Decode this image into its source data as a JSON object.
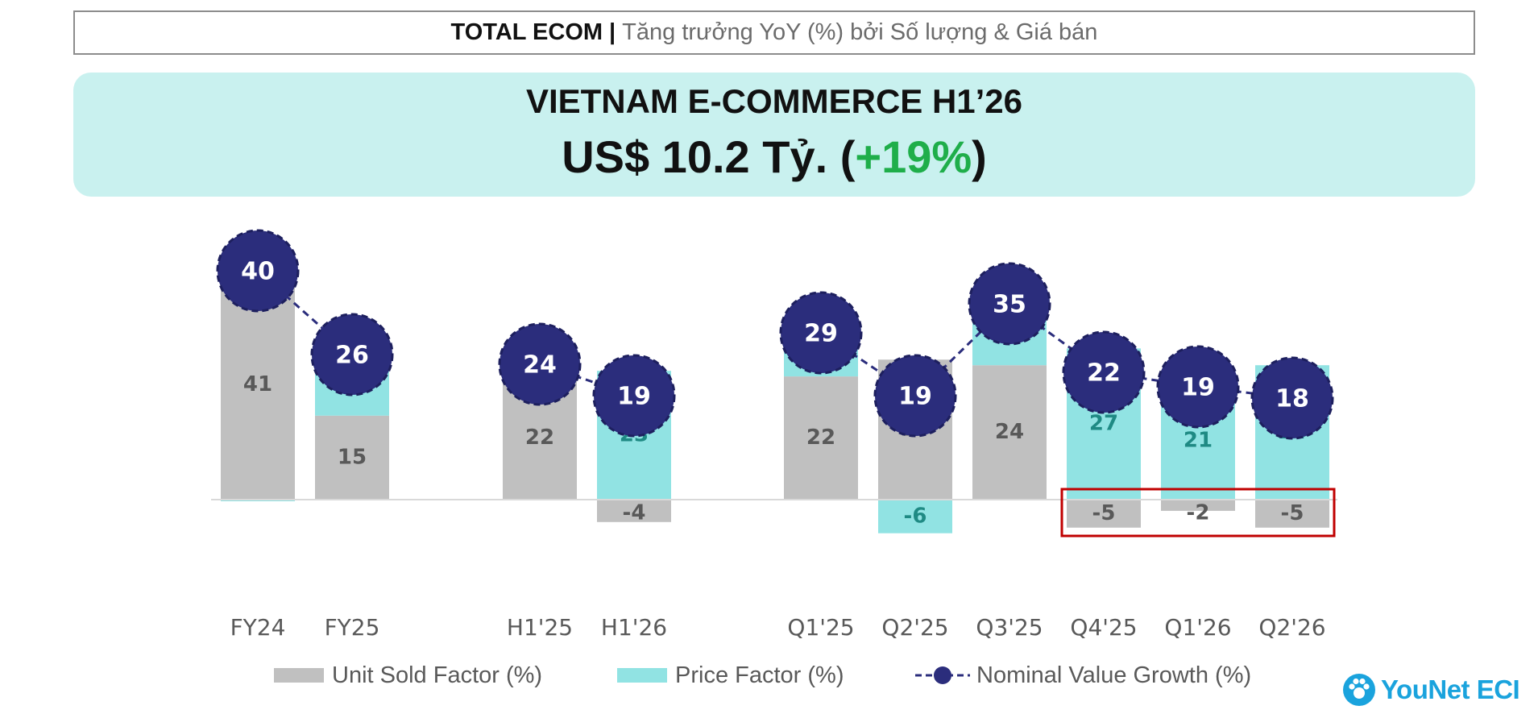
{
  "header": {
    "bold": "TOTAL ECOM",
    "separator": "|",
    "rest": "Tăng trưởng YoY (%) bởi Số lượng & Giá bán"
  },
  "headline": {
    "line1": "VIETNAM E-COMMERCE H1’26",
    "line2_prefix": "US$ 10.2 Tỷ. (",
    "line2_growth": "+19%",
    "line2_suffix": ")"
  },
  "colors": {
    "unit": "#c0c0c0",
    "price": "#91e3e3",
    "circle": "#2b2d7c",
    "price_label": "#1f8a84",
    "unit_label": "#595959",
    "highlight": "#c00000",
    "growth": "#1fae4a"
  },
  "chart_data": {
    "type": "bar",
    "categories": [
      "FY24",
      "FY25",
      "H1'25",
      "H1'26",
      "Q1'25",
      "Q2'25",
      "Q3'25",
      "Q4'25",
      "Q1'26",
      "Q2'26"
    ],
    "series": [
      {
        "name": "Unit Sold Factor (%)",
        "values": [
          41,
          15,
          22,
          -4,
          22,
          25,
          24,
          -5,
          -2,
          -5
        ]
      },
      {
        "name": "Price Factor (%)",
        "values": [
          0,
          11,
          2,
          23,
          7,
          -6,
          12,
          27,
          21,
          24
        ]
      },
      {
        "name": "Nominal Value Growth (%)",
        "values": [
          40,
          26,
          24,
          19,
          29,
          19,
          35,
          22,
          19,
          18
        ]
      }
    ],
    "unit_labels": [
      "41",
      "15",
      "22",
      "-4",
      "22",
      "25",
      "24",
      "-5",
      "-2",
      "-5"
    ],
    "price_labels": [
      "",
      "11",
      "2",
      "23",
      "7",
      "-6",
      "12",
      "27",
      "21",
      "24"
    ],
    "growth_labels": [
      "40",
      "26",
      "24",
      "19",
      "29",
      "19",
      "35",
      "22",
      "19",
      "18"
    ],
    "groups": [
      [
        0,
        1
      ],
      [
        2,
        3
      ],
      [
        4,
        5,
        6,
        7,
        8,
        9
      ]
    ],
    "highlighted_categories": [
      "Q4'25",
      "Q1'26",
      "Q2'26"
    ],
    "stacked": true,
    "gridlines": false
  },
  "legend": {
    "unit": "Unit Sold Factor (%)",
    "price": "Price Factor (%)",
    "growth": "Nominal Value Growth (%)"
  },
  "logo": {
    "text": "YouNet ECI",
    "icon": "paw-icon"
  }
}
